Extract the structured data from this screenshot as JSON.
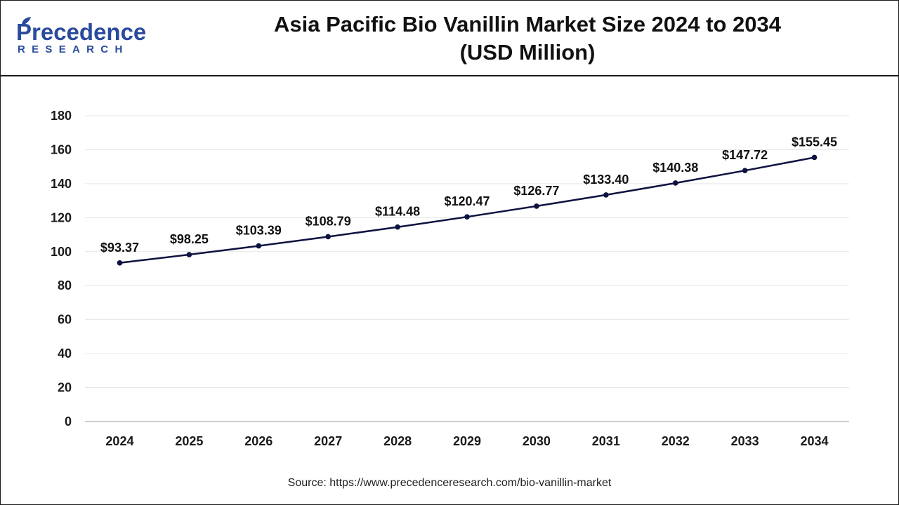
{
  "brand": {
    "name_top": "Precedence",
    "name_bottom": "RESEARCH",
    "color": "#2a4a9c"
  },
  "title": {
    "line1": "Asia Pacific Bio Vanillin Market Size 2024 to 2034",
    "line2": "(USD Million)"
  },
  "source": "Source: https://www.precedenceresearch.com/bio-vanillin-market",
  "chart_data": {
    "type": "line",
    "x": [
      "2024",
      "2025",
      "2026",
      "2027",
      "2028",
      "2029",
      "2030",
      "2031",
      "2032",
      "2033",
      "2034"
    ],
    "series": [
      {
        "values": [
          93.37,
          98.25,
          103.39,
          108.79,
          114.48,
          120.47,
          126.77,
          133.4,
          140.38,
          147.72,
          155.45
        ],
        "labels": [
          "$93.37",
          "$98.25",
          "$103.39",
          "$108.79",
          "$114.48",
          "$120.47",
          "$126.77",
          "$133.40",
          "$140.38",
          "$147.72",
          "$155.45"
        ],
        "color": "#0d1240"
      }
    ],
    "ylim": [
      0,
      180
    ],
    "yticks": [
      0,
      20,
      40,
      60,
      80,
      100,
      120,
      140,
      160,
      180
    ],
    "grid": true,
    "legend": "none"
  }
}
